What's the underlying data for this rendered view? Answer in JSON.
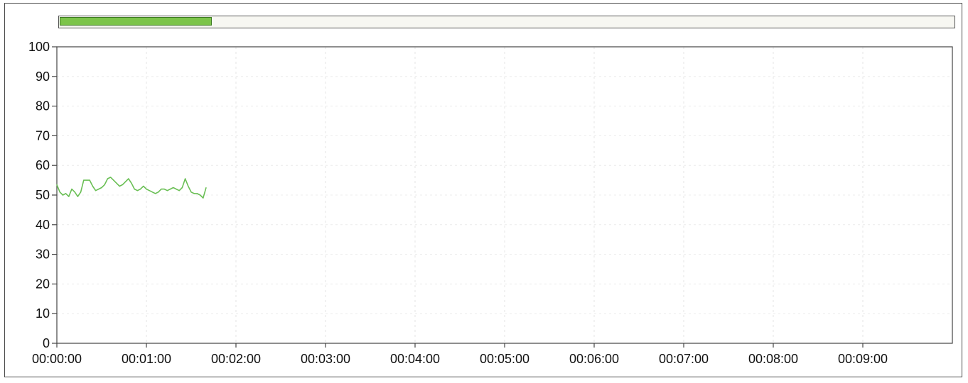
{
  "progress": {
    "value": 0.17,
    "color": "#7cc44a"
  },
  "chart_data": {
    "type": "line",
    "title": "",
    "xlabel": "",
    "ylabel": "",
    "xlim": [
      "00:00:00",
      "00:10:00"
    ],
    "ylim": [
      0,
      100
    ],
    "grid": true,
    "x_tick_labels": [
      "00:00:00",
      "00:01:00",
      "00:02:00",
      "00:03:00",
      "00:04:00",
      "00:05:00",
      "00:06:00",
      "00:07:00",
      "00:08:00",
      "00:09:00"
    ],
    "y_tick_labels": [
      "0",
      "10",
      "20",
      "30",
      "40",
      "50",
      "60",
      "70",
      "80",
      "90",
      "100"
    ],
    "series": [
      {
        "color": "#6abf55",
        "x": [
          "00:00:00",
          "00:00:02",
          "00:00:04",
          "00:00:06",
          "00:00:08",
          "00:00:10",
          "00:00:12",
          "00:00:14",
          "00:00:16",
          "00:00:18",
          "00:00:20",
          "00:00:22",
          "00:00:24",
          "00:00:26",
          "00:00:28",
          "00:00:30",
          "00:00:32",
          "00:00:34",
          "00:00:36",
          "00:00:38",
          "00:00:40",
          "00:00:42",
          "00:00:44",
          "00:00:46",
          "00:00:48",
          "00:00:50",
          "00:00:52",
          "00:00:54",
          "00:00:56",
          "00:00:58",
          "00:01:00",
          "00:01:02",
          "00:01:04",
          "00:01:06",
          "00:01:08",
          "00:01:10",
          "00:01:12",
          "00:01:14",
          "00:01:16",
          "00:01:18",
          "00:01:20",
          "00:01:22",
          "00:01:24",
          "00:01:26",
          "00:01:28",
          "00:01:30",
          "00:01:32",
          "00:01:34",
          "00:01:36",
          "00:01:38",
          "00:01:40"
        ],
        "y": [
          53.5,
          51,
          50,
          50.5,
          49.5,
          52,
          51,
          49.5,
          51,
          55,
          55,
          55,
          53,
          51.5,
          52,
          52.5,
          53.5,
          55.5,
          56,
          55,
          54,
          53,
          53.5,
          54.5,
          55.5,
          54,
          52,
          51.5,
          52,
          53,
          52,
          51.5,
          51,
          50.5,
          51,
          52,
          52,
          51.5,
          52,
          52.5,
          52,
          51.5,
          52.5,
          55.5,
          53,
          51,
          50.5,
          50.5,
          50,
          49,
          52.5
        ]
      }
    ]
  }
}
